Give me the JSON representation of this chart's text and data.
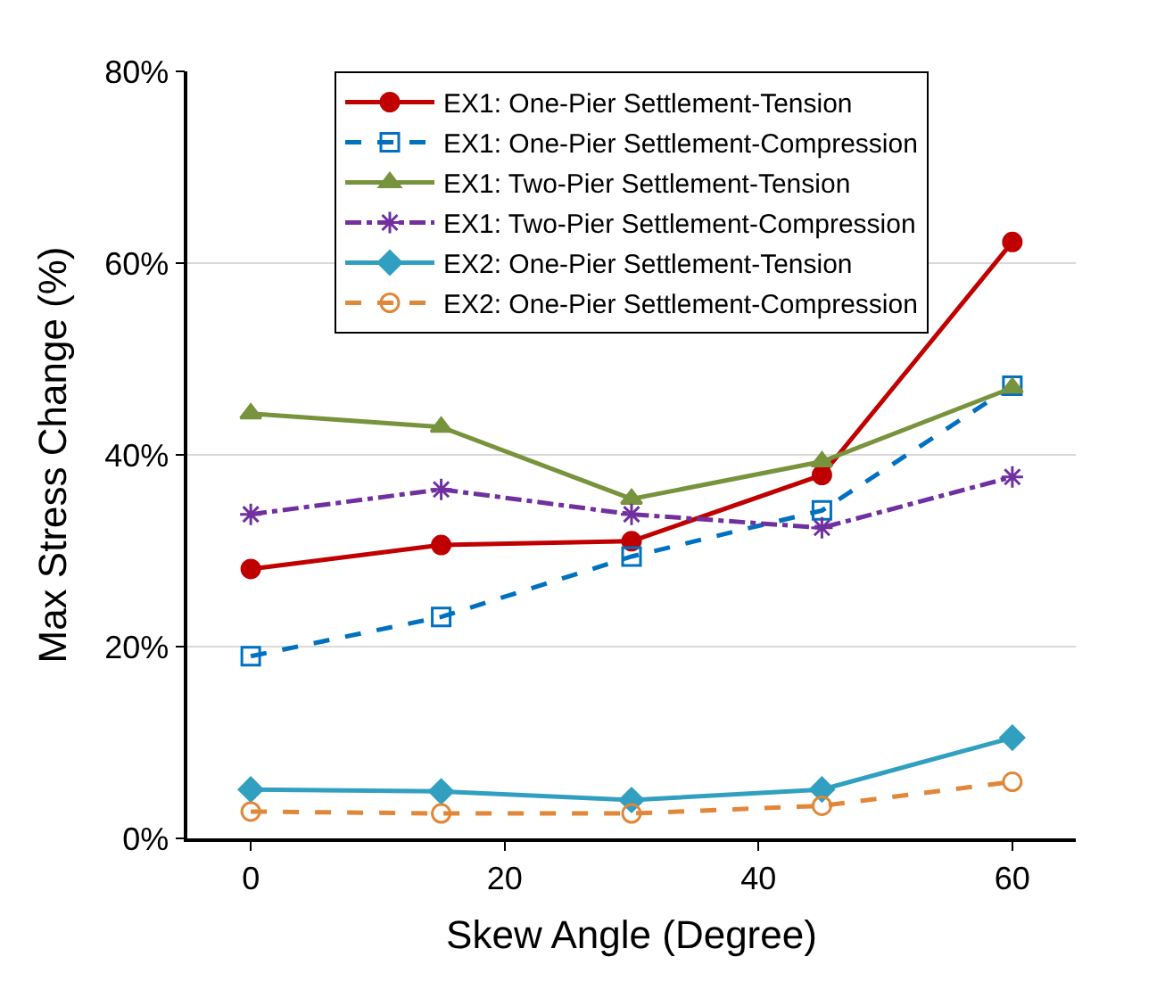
{
  "chart_data": {
    "type": "line",
    "xlabel": "Skew Angle (Degree)",
    "ylabel": "Max Stress Change (%)",
    "x": [
      0,
      15,
      30,
      45,
      60
    ],
    "xlim": [
      -5,
      65
    ],
    "xticks": [
      0,
      20,
      40,
      60
    ],
    "ylim": [
      0,
      80
    ],
    "yticks": [
      {
        "value": 0,
        "label": "0%"
      },
      {
        "value": 20,
        "label": "20%"
      },
      {
        "value": 40,
        "label": "40%"
      },
      {
        "value": 60,
        "label": "60%"
      },
      {
        "value": 80,
        "label": "80%"
      }
    ],
    "grid": "y",
    "legend": "top",
    "series": [
      {
        "name": "EX1: One-Pier Settlement-Tension",
        "color": "#c00000",
        "marker": "circle",
        "line_style": "solid",
        "values": [
          28.1,
          30.6,
          31.0,
          37.9,
          62.2
        ]
      },
      {
        "name": "EX1: One-Pier Settlement-Compression",
        "color": "#0070c0",
        "marker": "square",
        "line_style": "dashed",
        "values": [
          19.0,
          23.1,
          29.4,
          34.2,
          47.2
        ]
      },
      {
        "name": "EX1: Two-Pier Settlement-Tension",
        "color": "#77933c",
        "marker": "triangle",
        "line_style": "solid",
        "values": [
          44.3,
          42.9,
          35.4,
          39.3,
          47.0
        ]
      },
      {
        "name": "EX1: Two-Pier Settlement-Compression",
        "color": "#7030a0",
        "marker": "cross",
        "line_style": "dotted",
        "values": [
          33.8,
          36.4,
          33.8,
          32.4,
          37.7
        ]
      },
      {
        "name": "EX2: One-Pier Settlement-Tension",
        "color": "#31a0c0",
        "marker": "diamond",
        "line_style": "solid",
        "values": [
          5.1,
          4.9,
          4.0,
          5.1,
          10.5
        ]
      },
      {
        "name": "EX2: One-Pier Settlement-Compression",
        "color": "#e0873a",
        "marker": "circle",
        "line_style": "dashed",
        "values": [
          2.8,
          2.6,
          2.6,
          3.4,
          5.9
        ]
      }
    ]
  }
}
